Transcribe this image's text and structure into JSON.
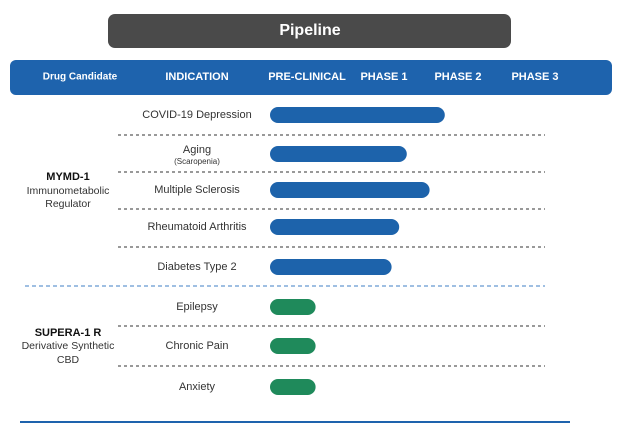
{
  "header": {
    "title": "Pipeline"
  },
  "columns": [
    "Drug Candidate",
    "INDICATION",
    "PRE-CLINICAL",
    "PHASE 1",
    "PHASE 2",
    "PHASE 3"
  ],
  "progress_unit": "phase",
  "candidates": [
    {
      "name": "MYMD-1",
      "description": [
        "Immunometabolic",
        "Regulator"
      ],
      "color": "#1d63ab",
      "indications": [
        {
          "label": "COVID-19 Depression",
          "progress": 2.3
        },
        {
          "label": "Aging",
          "note": "(Scaropenia)",
          "progress": 1.8
        },
        {
          "label": "Multiple Sclerosis",
          "progress": 2.1
        },
        {
          "label": "Rheumatoid Arthritis",
          "progress": 1.7
        },
        {
          "label": "Diabetes Type 2",
          "progress": 1.6
        }
      ]
    },
    {
      "name": "SUPERA-1 R",
      "description": [
        "Derivative Synthetic",
        "CBD"
      ],
      "color": "#1f8a5b",
      "indications": [
        {
          "label": "Epilepsy",
          "progress": 0.6
        },
        {
          "label": "Chronic Pain",
          "progress": 0.6
        },
        {
          "label": "Anxiety",
          "progress": 0.6
        }
      ]
    }
  ]
}
